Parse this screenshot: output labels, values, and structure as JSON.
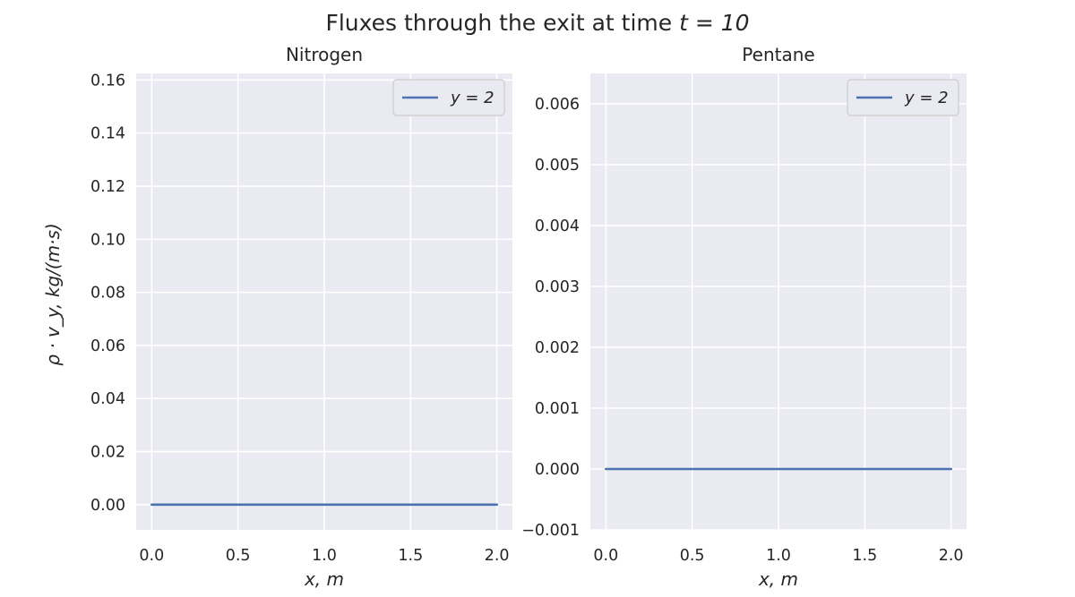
{
  "figure": {
    "title_pre": "Fluxes through the exit at time ",
    "title_math": "t = 10"
  },
  "chart_data": [
    {
      "type": "line",
      "title": "Nitrogen",
      "xlabel": "x, m",
      "ylabel": "ρ · v_y, kg/(m·s)",
      "xlim": [
        -0.09,
        2.09
      ],
      "ylim": [
        -0.0095,
        0.1625
      ],
      "xticks": [
        0.0,
        0.5,
        1.0,
        1.5,
        2.0
      ],
      "xtick_labels": [
        "0.0",
        "0.5",
        "1.0",
        "1.5",
        "2.0"
      ],
      "yticks": [
        0.0,
        0.02,
        0.04,
        0.06,
        0.08,
        0.1,
        0.12,
        0.14,
        0.16
      ],
      "ytick_labels": [
        "0.00",
        "0.02",
        "0.04",
        "0.06",
        "0.08",
        "0.10",
        "0.12",
        "0.14",
        "0.16"
      ],
      "grid": true,
      "legend_position": "top-right",
      "series": [
        {
          "name": "y = 2",
          "color": "#4c72b0",
          "x": [
            0.0,
            0.5,
            1.0,
            1.5,
            2.0
          ],
          "y": [
            0.0,
            0.0,
            0.0,
            0.0,
            0.0
          ]
        }
      ]
    },
    {
      "type": "line",
      "title": "Pentane",
      "xlabel": "x, m",
      "ylabel": "",
      "xlim": [
        -0.09,
        2.09
      ],
      "ylim": [
        -0.001,
        0.0065
      ],
      "xticks": [
        0.0,
        0.5,
        1.0,
        1.5,
        2.0
      ],
      "xtick_labels": [
        "0.0",
        "0.5",
        "1.0",
        "1.5",
        "2.0"
      ],
      "yticks": [
        -0.001,
        0.0,
        0.001,
        0.002,
        0.003,
        0.004,
        0.005,
        0.006
      ],
      "ytick_labels": [
        "−0.001",
        "0.000",
        "0.001",
        "0.002",
        "0.003",
        "0.004",
        "0.005",
        "0.006"
      ],
      "grid": true,
      "legend_position": "top-right",
      "series": [
        {
          "name": "y = 2",
          "color": "#4c72b0",
          "x": [
            0.0,
            0.5,
            1.0,
            1.5,
            2.0
          ],
          "y": [
            0.0,
            0.0,
            0.0,
            0.0,
            0.0
          ]
        }
      ]
    }
  ]
}
